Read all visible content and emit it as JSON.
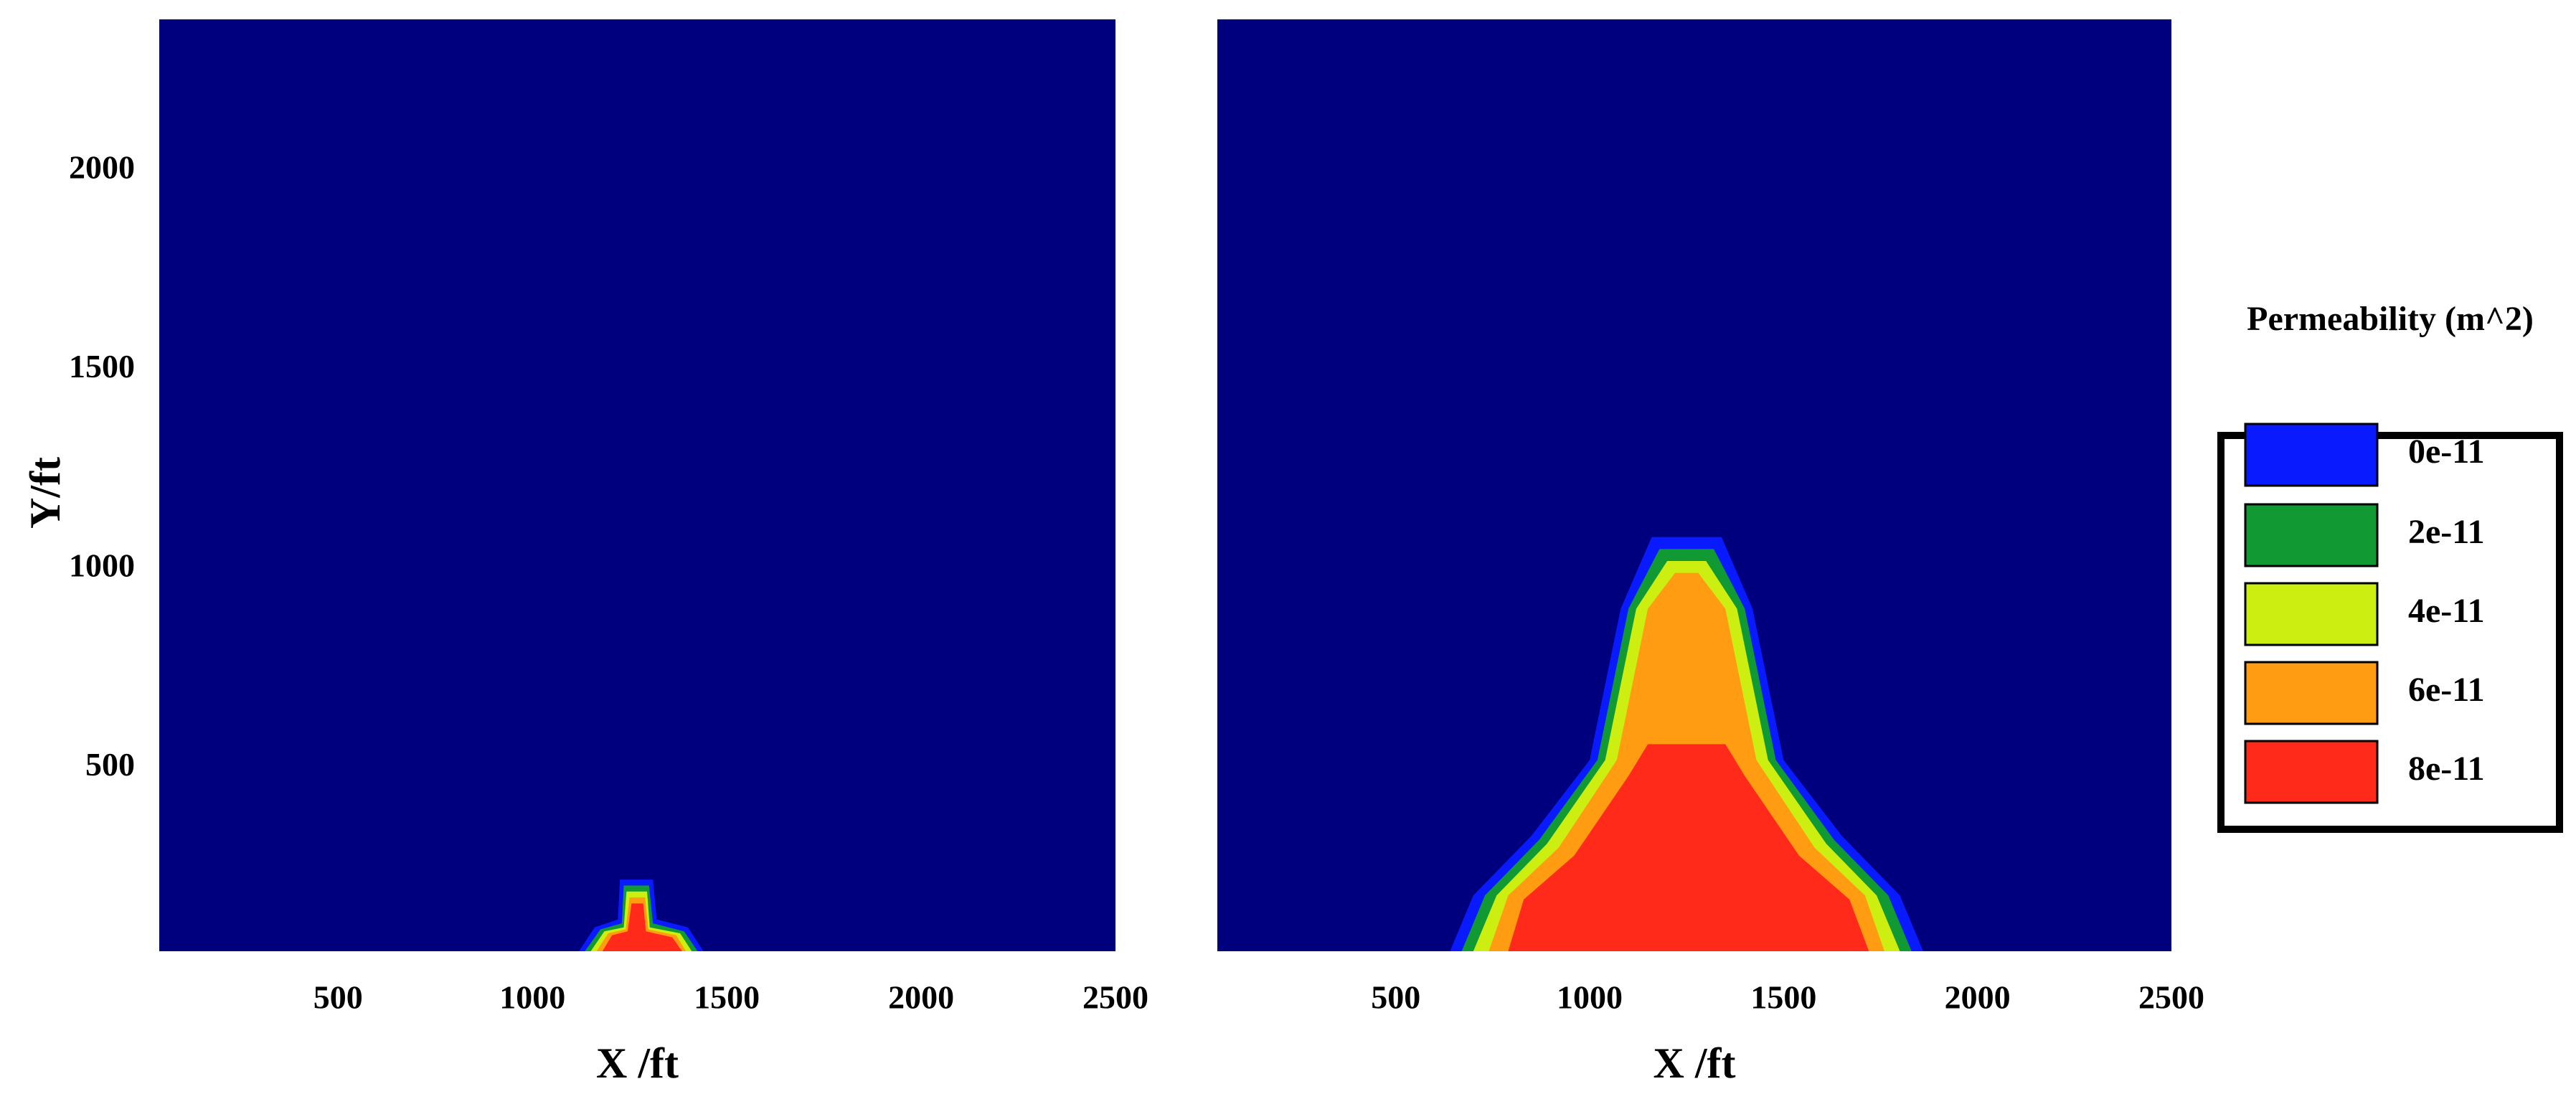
{
  "chart_data": [
    {
      "type": "contour",
      "xlabel": "X /ft",
      "ylabel": "Y/ft",
      "background": "#00007f",
      "xlim": [
        40,
        2500
      ],
      "ylim": [
        40,
        2380
      ],
      "xticks": [
        500,
        1000,
        1500,
        2000,
        2500
      ],
      "yticks": [
        500,
        1000,
        1500,
        2000
      ],
      "contours": [
        {
          "level": 0,
          "x": [
            1120,
            1160,
            1220,
            1225,
            1310,
            1320,
            1400,
            1440
          ],
          "y": [
            40,
            100,
            120,
            220,
            220,
            120,
            100,
            40
          ]
        },
        {
          "level": 2e-11,
          "x": [
            1135,
            1175,
            1230,
            1235,
            1300,
            1310,
            1390,
            1425
          ],
          "y": [
            40,
            95,
            110,
            205,
            205,
            110,
            90,
            40
          ]
        },
        {
          "level": 4e-11,
          "x": [
            1150,
            1185,
            1235,
            1242,
            1295,
            1302,
            1380,
            1410
          ],
          "y": [
            40,
            90,
            100,
            190,
            190,
            100,
            85,
            40
          ]
        },
        {
          "level": 6e-11,
          "x": [
            1165,
            1195,
            1240,
            1250,
            1290,
            1298,
            1370,
            1395
          ],
          "y": [
            40,
            85,
            95,
            175,
            175,
            95,
            80,
            40
          ]
        },
        {
          "level": 8e-11,
          "x": [
            1180,
            1205,
            1245,
            1255,
            1285,
            1292,
            1360,
            1385
          ],
          "y": [
            40,
            80,
            90,
            160,
            160,
            90,
            75,
            40
          ]
        }
      ]
    },
    {
      "type": "contour",
      "xlabel": "X /ft",
      "background": "#00007f",
      "xlim": [
        40,
        2500
      ],
      "ylim": [
        40,
        2380
      ],
      "xticks": [
        500,
        1000,
        1500,
        2000,
        2500
      ],
      "contours": [
        {
          "level": 0,
          "x": [
            640,
            700,
            850,
            1000,
            1080,
            1160,
            1340,
            1420,
            1500,
            1650,
            1800,
            1860
          ],
          "y": [
            40,
            180,
            330,
            520,
            900,
            1080,
            1080,
            900,
            520,
            330,
            180,
            40
          ]
        },
        {
          "level": 2e-11,
          "x": [
            670,
            730,
            870,
            1020,
            1100,
            1180,
            1320,
            1400,
            1480,
            1630,
            1770,
            1830
          ],
          "y": [
            40,
            180,
            320,
            520,
            900,
            1050,
            1050,
            900,
            520,
            320,
            180,
            40
          ]
        },
        {
          "level": 4e-11,
          "x": [
            700,
            760,
            890,
            1040,
            1120,
            1200,
            1300,
            1380,
            1460,
            1610,
            1740,
            1800
          ],
          "y": [
            40,
            180,
            310,
            520,
            900,
            1020,
            1020,
            900,
            520,
            310,
            180,
            40
          ]
        },
        {
          "level": 6e-11,
          "x": [
            740,
            790,
            920,
            1070,
            1150,
            1220,
            1280,
            1350,
            1430,
            1580,
            1710,
            1760
          ],
          "y": [
            40,
            180,
            300,
            520,
            900,
            990,
            990,
            900,
            520,
            300,
            180,
            40
          ]
        },
        {
          "level": 8e-11,
          "x": [
            790,
            830,
            960,
            1100,
            1150,
            1350,
            1400,
            1540,
            1670,
            1720
          ],
          "y": [
            40,
            170,
            280,
            480,
            560,
            560,
            480,
            280,
            170,
            40
          ]
        }
      ]
    }
  ],
  "legend": {
    "title": "Permeability (m^2)",
    "levels": [
      {
        "value": 0,
        "label": "0e-11"
      },
      2e-11,
      4e-11,
      6e-11,
      8e-11
    ],
    "colors": [
      "#0a1aff",
      "#119933",
      "#ccee11",
      "#ff9c11",
      "#ff2a1a"
    ]
  }
}
